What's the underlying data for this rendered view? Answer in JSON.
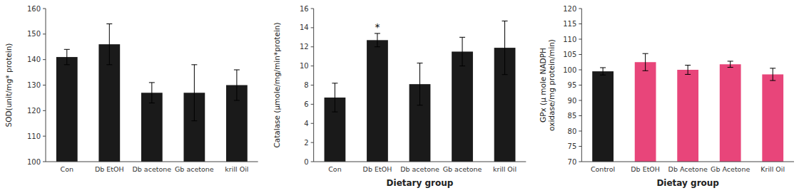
{
  "chart_data": [
    {
      "type": "bar",
      "categories": [
        "Con",
        "Db EtOH",
        "Db acetone",
        "Gb acetone",
        "krill Oil"
      ],
      "values": [
        141,
        146,
        127,
        127,
        130
      ],
      "errors": [
        3,
        8,
        4,
        11,
        6
      ],
      "ylabel": "SOD(unit/mg* protein)",
      "ylim": [
        100,
        160
      ],
      "yticks": [
        100,
        110,
        120,
        130,
        140,
        150,
        160
      ],
      "color": "#1a1a1a",
      "grid": false
    },
    {
      "type": "bar",
      "categories": [
        "Con",
        "Db EtOH",
        "Db acetone",
        "Gb acetone",
        "krill Oil"
      ],
      "values": [
        6.7,
        12.7,
        8.1,
        11.5,
        11.9
      ],
      "errors": [
        1.5,
        0.7,
        2.2,
        1.5,
        2.8
      ],
      "ylabel": "Catalase (μmole/mg/min*protein)",
      "xlabel": "Dietary group",
      "ylim": [
        0,
        16
      ],
      "yticks": [
        0,
        2,
        4,
        6,
        8,
        10,
        12,
        14,
        16
      ],
      "color": "#1a1a1a",
      "annotations": [
        {
          "text": "*",
          "category": "Db EtOH"
        }
      ],
      "grid": false
    },
    {
      "type": "bar",
      "categories": [
        "Control",
        "Db EtOH",
        "Db Acetone",
        "Gb Acetone",
        "Krill Oil"
      ],
      "values": [
        99.5,
        102.5,
        100.0,
        101.8,
        98.5
      ],
      "errors": [
        1.2,
        2.8,
        1.5,
        1.0,
        2.0
      ],
      "ylabel": "GPx (μ mole NADPH\noxidase/mg protein/min)",
      "xlabel": "Dietay group",
      "ylim": [
        70,
        120
      ],
      "yticks": [
        70,
        75,
        80,
        85,
        90,
        95,
        100,
        105,
        110,
        115,
        120
      ],
      "colors": [
        "#1a1a1a",
        "#e8457a",
        "#e8457a",
        "#e8457a",
        "#e8457a"
      ],
      "grid": false
    }
  ]
}
